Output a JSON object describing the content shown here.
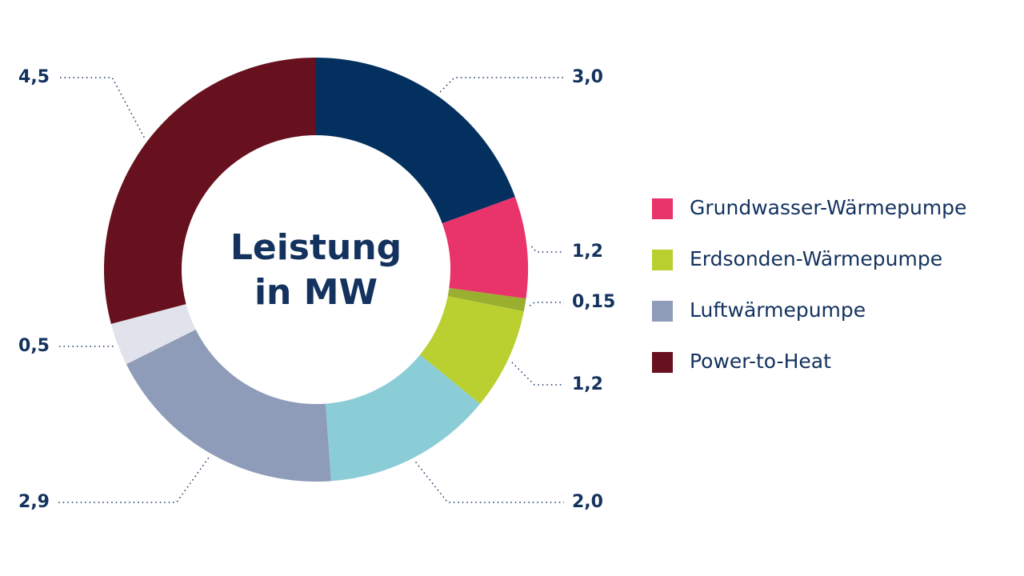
{
  "chart_data": {
    "type": "donut",
    "title": "Leistung in MW",
    "categories": [
      null,
      "Grundwasser-Wärmepumpe",
      null,
      "Erdsonden-Wärmepumpe",
      null,
      "Luftwärmepumpe",
      null,
      "Power-to-Heat"
    ],
    "values": [
      3.0,
      1.2,
      0.15,
      1.2,
      2.0,
      2.9,
      0.5,
      4.5
    ],
    "value_labels": [
      "3,0",
      "1,2",
      "0,15",
      "1,2",
      "2,0",
      "2,9",
      "0,5",
      "4,5"
    ],
    "colors": [
      "#03305e",
      "#e8336b",
      "#9aae2f",
      "#b9d030",
      "#8bcdd6",
      "#8e9bb9",
      "#e1e3ec",
      "#66111d"
    ]
  }
}
